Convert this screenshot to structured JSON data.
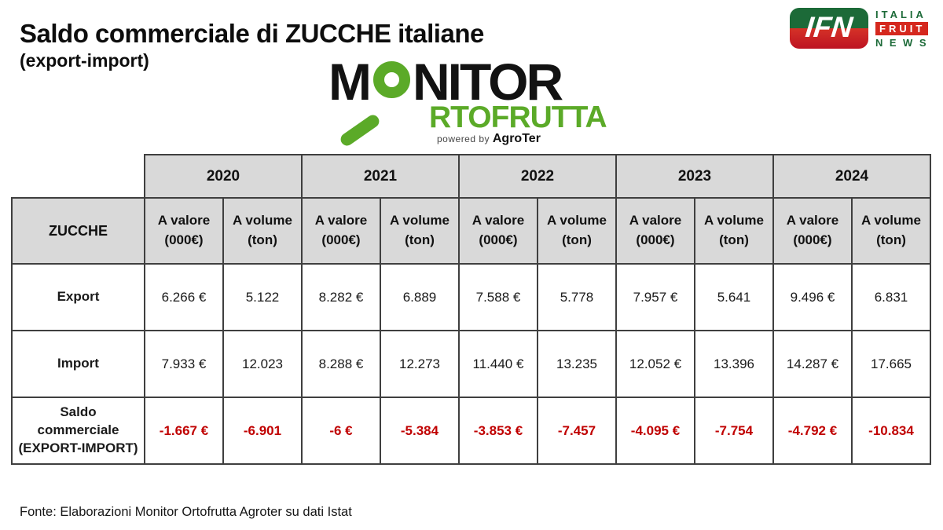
{
  "header": {
    "title": "Saldo commerciale di ZUCCHE italiane",
    "subtitle": "(export-import)"
  },
  "logos": {
    "monitor": {
      "word_start": "M",
      "word_end": "NITOR",
      "word_line2": "RTOFRUTTA",
      "powered_by": "powered by ",
      "brand": "AgroTer",
      "green": "#5baa28"
    },
    "ifn": {
      "acronym": "IFN",
      "line1": "ITALIA",
      "line2": "FRUIT",
      "line3": "NEWS",
      "green": "#1c6a38",
      "red": "#d5281e"
    }
  },
  "chart_data": {
    "type": "table",
    "title": "Saldo commerciale di ZUCCHE italiane (export-import)",
    "corner_label": "ZUCCHE",
    "years": [
      "2020",
      "2021",
      "2022",
      "2023",
      "2024"
    ],
    "measure_headers": [
      "A valore (000€)",
      "A volume (ton)"
    ],
    "rows": [
      {
        "label": "Export",
        "values": [
          "6.266 €",
          "5.122",
          "8.282 €",
          "6.889",
          "7.588 €",
          "5.778",
          "7.957 €",
          "5.641",
          "9.496 €",
          "6.831"
        ]
      },
      {
        "label": "Import",
        "values": [
          "7.933 €",
          "12.023",
          "8.288 €",
          "12.273",
          "11.440 €",
          "13.235",
          "12.052 €",
          "13.396",
          "14.287 €",
          "17.665"
        ]
      },
      {
        "label": "Saldo\ncommerciale\n(EXPORT-IMPORT)",
        "values": [
          "-1.667 €",
          "-6.901",
          "-6 €",
          "-5.384",
          "-3.853 €",
          "-7.457",
          "-4.095 €",
          "-7.754",
          "-4.792 €",
          "-10.834"
        ],
        "value_color": "#c00000"
      }
    ],
    "layout": {
      "header_fill": "#d9d9d9",
      "grid_color": "#3f3f3f",
      "negative_color": "#c00000"
    }
  },
  "footer": {
    "source": "Fonte: Elaborazioni Monitor Ortofrutta Agroter su dati Istat"
  }
}
